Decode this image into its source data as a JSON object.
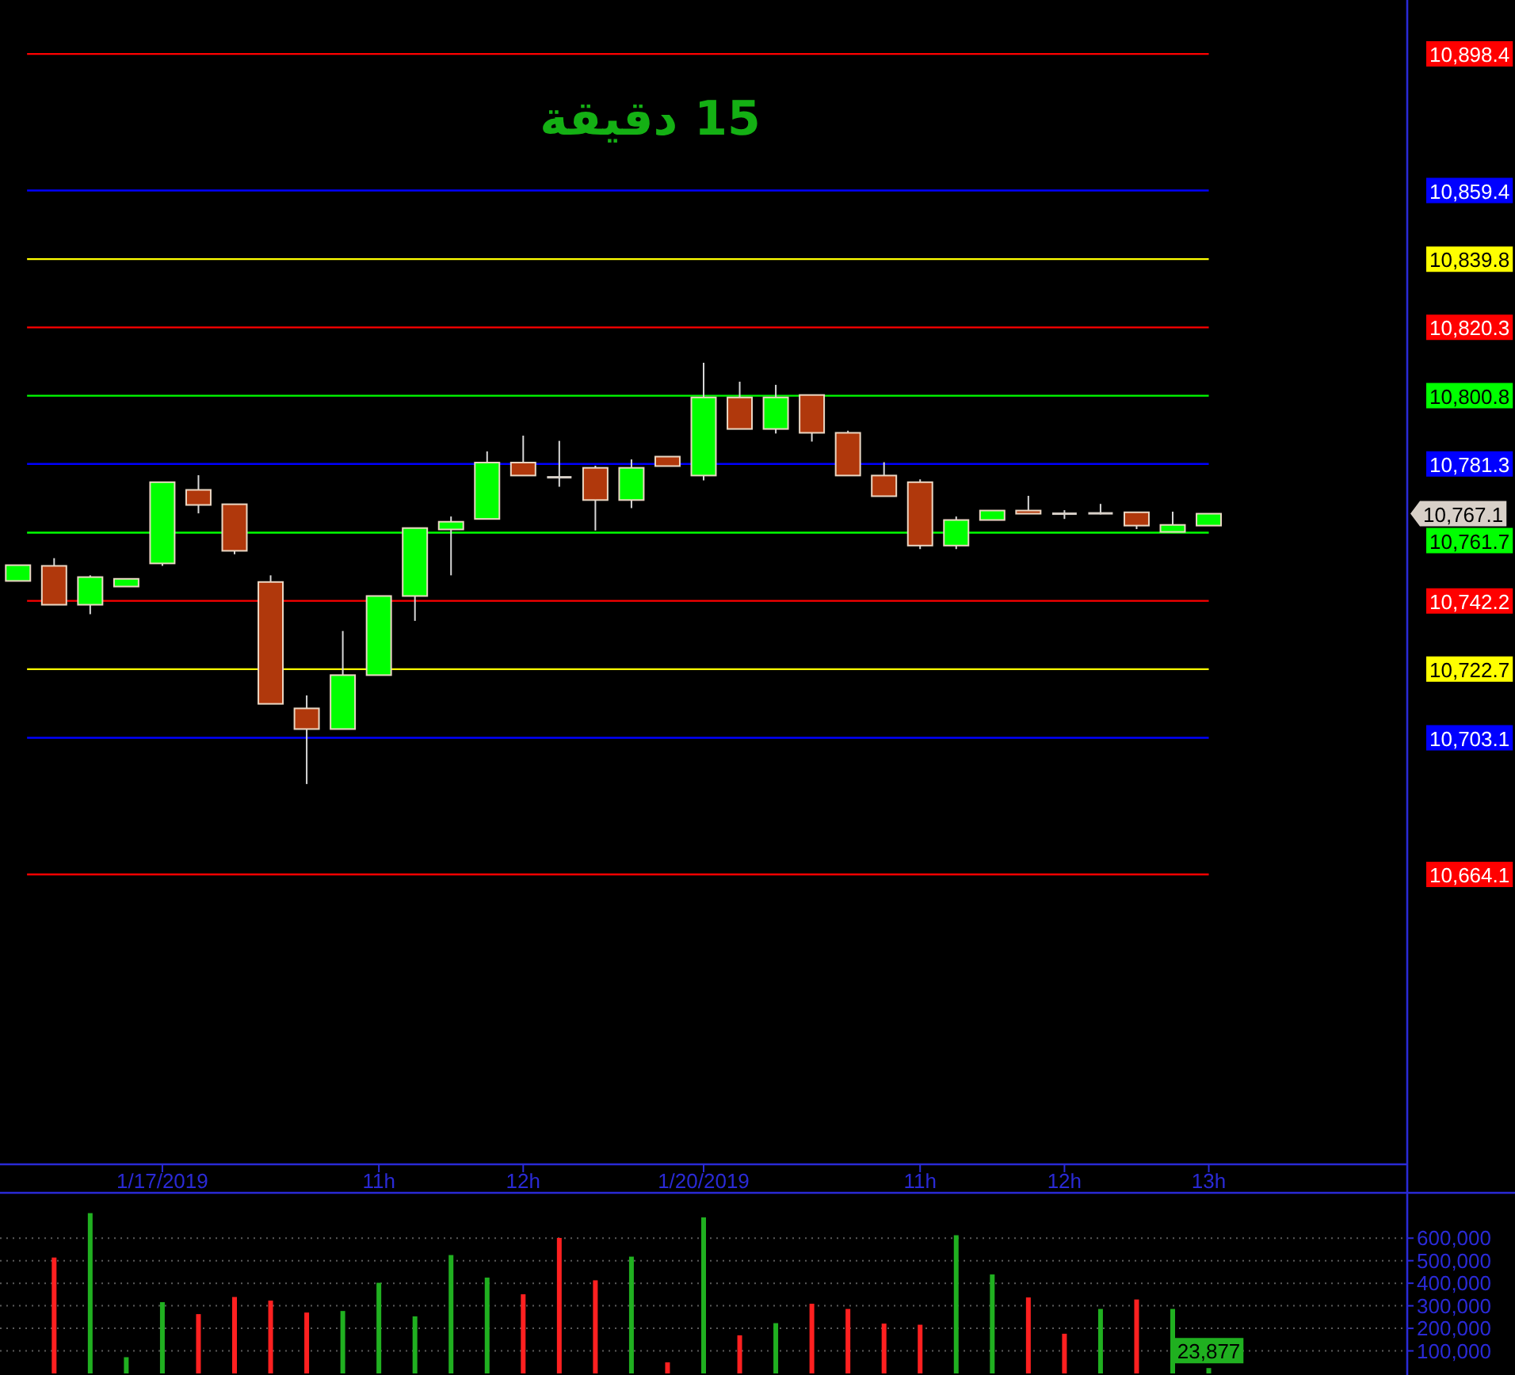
{
  "chart_data": [
    {
      "type": "candlestick",
      "title": "15 دقيقة",
      "categories": [
        null,
        null,
        null,
        null,
        "1/17/2019",
        null,
        null,
        null,
        null,
        null,
        "11h",
        null,
        null,
        null,
        "12h",
        null,
        null,
        null,
        null,
        "1/20/2019",
        null,
        null,
        null,
        null,
        null,
        "11h",
        null,
        null,
        null,
        "12h",
        null,
        null,
        null,
        "13h",
        null,
        null,
        null,
        null,
        null
      ],
      "ohlc": [
        [
          10747.9,
          10752.4,
          10747.9,
          10752.4
        ],
        [
          10752.2,
          10754.4,
          10741.1,
          10741.1
        ],
        [
          10741.1,
          10749.5,
          10738.4,
          10749.0
        ],
        [
          10746.3,
          10748.5,
          10746.3,
          10748.5
        ],
        [
          10752.9,
          10776.1,
          10752.2,
          10776.1
        ],
        [
          10773.9,
          10778.1,
          10767.2,
          10769.6
        ],
        [
          10769.8,
          10769.8,
          10755.5,
          10756.5
        ],
        [
          10747.6,
          10749.5,
          10712.8,
          10712.8
        ],
        [
          10711.5,
          10715.2,
          10689.9,
          10705.6
        ],
        [
          10705.6,
          10733.6,
          10705.6,
          10721.0
        ],
        [
          10721.0,
          10743.6,
          10721.0,
          10743.6
        ],
        [
          10743.6,
          10763.0,
          10736.5,
          10763.0
        ],
        [
          10762.6,
          10766.3,
          10749.5,
          10764.8
        ],
        [
          10765.6,
          10784.9,
          10765.6,
          10781.7
        ],
        [
          10781.7,
          10789.4,
          10778.0,
          10778.0
        ],
        [
          10777.5,
          10787.9,
          10774.8,
          10777.5
        ],
        [
          10780.2,
          10780.8,
          10762.3,
          10771.0
        ],
        [
          10771.0,
          10782.6,
          10768.7,
          10780.2
        ],
        [
          10783.4,
          10783.4,
          10780.7,
          10780.7
        ],
        [
          10778.0,
          10810.2,
          10776.6,
          10800.3
        ],
        [
          10800.3,
          10804.8,
          10791.3,
          10791.3
        ],
        [
          10791.3,
          10803.9,
          10790.0,
          10800.3
        ],
        [
          10801.0,
          10801.0,
          10787.7,
          10790.2
        ],
        [
          10790.2,
          10790.8,
          10778.0,
          10778.0
        ],
        [
          10778.0,
          10781.8,
          10772.1,
          10772.1
        ],
        [
          10776.1,
          10776.9,
          10757.0,
          10758.0
        ],
        [
          10758.0,
          10766.3,
          10757.0,
          10765.3
        ],
        [
          10765.3,
          10768.0,
          10765.3,
          10768.0
        ],
        [
          10768.0,
          10772.2,
          10767.1,
          10767.1
        ],
        [
          10767.1,
          10768.1,
          10765.6,
          10767.1
        ],
        [
          10767.2,
          10769.9,
          10766.9,
          10767.2
        ],
        [
          10767.5,
          10767.5,
          10762.7,
          10763.7
        ],
        [
          10761.9,
          10767.7,
          10761.9,
          10763.9
        ],
        [
          10763.7,
          10767.1,
          10763.7,
          10767.1
        ],
        null,
        null,
        null,
        null,
        null
      ],
      "colors": [
        "#00ff00",
        "#b0380c",
        "#00ff00",
        "#00ff00",
        "#00ff00",
        "#b0380c",
        "#b0380c",
        "#b0380c",
        "#b0380c",
        "#00ff00",
        "#00ff00",
        "#00ff00",
        "#00ff00",
        "#00ff00",
        "#b0380c",
        "#d8d0c8",
        "#b0380c",
        "#00ff00",
        "#b0380c",
        "#00ff00",
        "#b0380c",
        "#00ff00",
        "#b0380c",
        "#b0380c",
        "#b0380c",
        "#b0380c",
        "#00ff00",
        "#00ff00",
        "#b0380c",
        "#d8d0c8",
        "#d8d0c8",
        "#b0380c",
        "#00ff00",
        "#00ff00",
        null,
        null,
        null,
        null,
        null
      ],
      "ylim": [
        10581.3,
        10913.8
      ],
      "yticks": [
        {
          "value": 10898.4,
          "label": "10,898.4"
        },
        {
          "value": 10859.4,
          "label": "10,859.4"
        },
        {
          "value": 10839.8,
          "label": "10,839.8"
        },
        {
          "value": 10820.3,
          "label": "10,820.3"
        },
        {
          "value": 10800.8,
          "label": "10,800.8"
        },
        {
          "value": 10781.3,
          "label": "10,781.3"
        },
        {
          "value": 10761.7,
          "label": "10,761.7"
        },
        {
          "value": 10742.2,
          "label": "10,742.2"
        },
        {
          "value": 10722.7,
          "label": "10,722.7"
        },
        {
          "value": 10703.1,
          "label": "10,703.1"
        },
        {
          "value": 10664.1,
          "label": "10,664.1"
        }
      ],
      "ref_lines": [
        {
          "axis": "y",
          "value": 10898.4,
          "color": "#ff0000"
        },
        {
          "axis": "y",
          "value": 10859.4,
          "color": "#0000ff"
        },
        {
          "axis": "y",
          "value": 10839.8,
          "color": "#ffff00"
        },
        {
          "axis": "y",
          "value": 10820.3,
          "color": "#ff0000"
        },
        {
          "axis": "y",
          "value": 10800.8,
          "color": "#00ff00"
        },
        {
          "axis": "y",
          "value": 10781.3,
          "color": "#0000ff"
        },
        {
          "axis": "y",
          "value": 10761.7,
          "color": "#00ff00"
        },
        {
          "axis": "y",
          "value": 10742.2,
          "color": "#ff0000"
        },
        {
          "axis": "y",
          "value": 10722.7,
          "color": "#ffff00"
        },
        {
          "axis": "y",
          "value": 10703.1,
          "color": "#0000ff"
        },
        {
          "axis": "y",
          "value": 10664.1,
          "color": "#ff0000"
        }
      ],
      "annotations": [
        "10,767.1"
      ]
    },
    {
      "type": "bar",
      "categories": [
        null,
        null,
        null,
        null,
        null,
        null,
        null,
        null,
        null,
        null,
        null,
        null,
        null,
        null,
        null,
        null,
        null,
        null,
        null,
        null,
        null,
        null,
        null,
        null,
        null,
        null,
        null,
        null,
        null,
        null,
        null,
        null,
        null,
        null,
        null,
        null,
        null,
        null,
        null
      ],
      "values": [
        null,
        514000,
        711000,
        72000,
        316000,
        263000,
        339000,
        323000,
        270000,
        277000,
        402000,
        253000,
        525000,
        425000,
        351000,
        601000,
        413000,
        518000,
        49000,
        692000,
        169000,
        223000,
        309000,
        286000,
        221000,
        216000,
        613000,
        439000,
        337000,
        176000,
        286000,
        328000,
        286000,
        23877,
        null,
        null,
        null,
        null,
        null
      ],
      "colors": [
        null,
        "#ff2020",
        "#20b020",
        "#20b020",
        "#20b020",
        "#ff2020",
        "#ff2020",
        "#ff2020",
        "#ff2020",
        "#20b020",
        "#20b020",
        "#20b020",
        "#20b020",
        "#20b020",
        "#ff2020",
        "#ff2020",
        "#ff2020",
        "#20b020",
        "#ff2020",
        "#20b020",
        "#ff2020",
        "#20b020",
        "#ff2020",
        "#ff2020",
        "#ff2020",
        "#ff2020",
        "#20b020",
        "#20b020",
        "#ff2020",
        "#ff2020",
        "#20b020",
        "#ff2020",
        "#20b020",
        "#20b020",
        null,
        null,
        null,
        null,
        null
      ],
      "value_labels": [
        null,
        null,
        null,
        null,
        null,
        null,
        null,
        null,
        null,
        null,
        null,
        null,
        null,
        null,
        null,
        null,
        null,
        null,
        null,
        null,
        null,
        null,
        null,
        null,
        null,
        null,
        null,
        null,
        null,
        null,
        null,
        null,
        null,
        "23,877",
        null,
        null,
        null,
        null,
        null
      ],
      "ylim": [
        0,
        794000
      ],
      "yticks": [
        {
          "value": 100000,
          "label": "100,000"
        },
        {
          "value": 200000,
          "label": "200,000"
        },
        {
          "value": 300000,
          "label": "300,000"
        },
        {
          "value": 400000,
          "label": "400,000"
        },
        {
          "value": 500000,
          "label": "500,000"
        },
        {
          "value": 600000,
          "label": "600,000"
        }
      ],
      "grid": "y",
      "tick_labels": "y"
    }
  ]
}
